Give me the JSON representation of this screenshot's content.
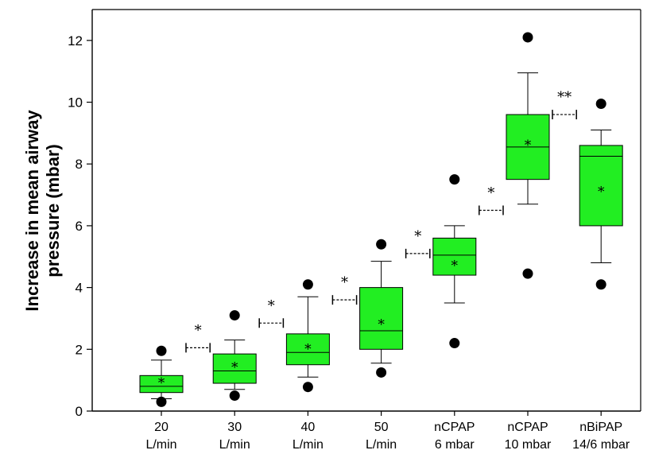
{
  "chart_data": {
    "type": "box",
    "ylabel_lines": [
      "Increase in mean airway",
      "pressure (mbar)"
    ],
    "ylim": [
      0,
      13
    ],
    "yticks": [
      0,
      2,
      4,
      6,
      8,
      10,
      12
    ],
    "box_color": "#22ee22",
    "categories": [
      {
        "line1": "20",
        "line2": "L/min"
      },
      {
        "line1": "30",
        "line2": "L/min"
      },
      {
        "line1": "40",
        "line2": "L/min"
      },
      {
        "line1": "50",
        "line2": "L/min"
      },
      {
        "line1": "nCPAP",
        "line2": "6 mbar"
      },
      {
        "line1": "nCPAP",
        "line2": "10 mbar"
      },
      {
        "line1": "nBiPAP",
        "line2": "14/6 mbar"
      }
    ],
    "boxes": [
      {
        "whisker_low": 0.4,
        "q1": 0.6,
        "median": 0.8,
        "q3": 1.15,
        "whisker_high": 1.65,
        "mean": 1.0,
        "outliers": [
          0.3,
          1.95
        ]
      },
      {
        "whisker_low": 0.7,
        "q1": 0.9,
        "median": 1.3,
        "q3": 1.85,
        "whisker_high": 2.3,
        "mean": 1.5,
        "outliers": [
          0.5,
          3.1
        ]
      },
      {
        "whisker_low": 1.1,
        "q1": 1.5,
        "median": 1.9,
        "q3": 2.5,
        "whisker_high": 3.7,
        "mean": 2.1,
        "outliers": [
          0.78,
          4.1
        ]
      },
      {
        "whisker_low": 1.55,
        "q1": 2.0,
        "median": 2.6,
        "q3": 4.0,
        "whisker_high": 4.85,
        "mean": 2.9,
        "outliers": [
          1.25,
          5.4
        ]
      },
      {
        "whisker_low": 3.5,
        "q1": 4.4,
        "median": 5.05,
        "q3": 5.6,
        "whisker_high": 6.0,
        "mean": 4.8,
        "outliers": [
          2.2,
          7.5
        ]
      },
      {
        "whisker_low": 6.7,
        "q1": 7.5,
        "median": 8.55,
        "q3": 9.6,
        "whisker_high": 10.95,
        "mean": 8.7,
        "outliers": [
          4.45,
          12.1
        ]
      },
      {
        "whisker_low": 4.8,
        "q1": 6.0,
        "median": 8.25,
        "q3": 8.6,
        "whisker_high": 9.1,
        "mean": 7.2,
        "outliers": [
          4.1,
          9.95
        ]
      }
    ],
    "comparisons": [
      {
        "between": [
          0,
          1
        ],
        "level": 2.05,
        "label": "*"
      },
      {
        "between": [
          1,
          2
        ],
        "level": 2.85,
        "label": "*"
      },
      {
        "between": [
          2,
          3
        ],
        "level": 3.6,
        "label": "*"
      },
      {
        "between": [
          3,
          4
        ],
        "level": 5.1,
        "label": "*"
      },
      {
        "between": [
          4,
          5
        ],
        "level": 6.5,
        "label": "*"
      },
      {
        "between": [
          5,
          6
        ],
        "level": 9.6,
        "label": "**"
      }
    ]
  }
}
